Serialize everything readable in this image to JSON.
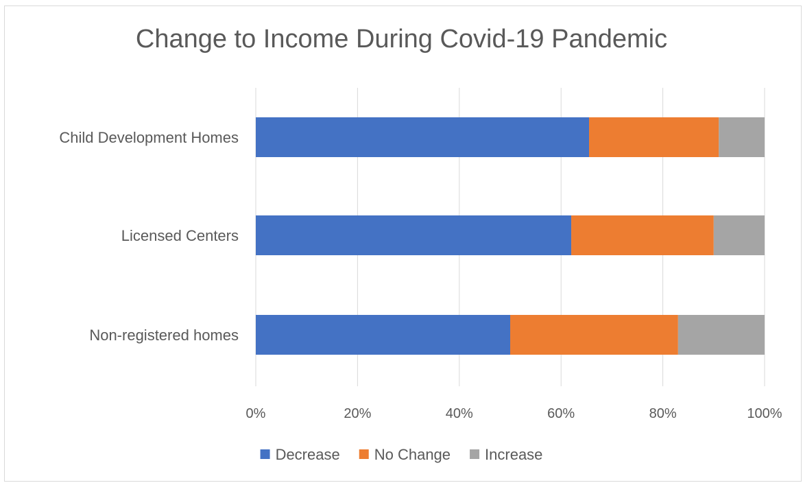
{
  "chart_data": {
    "type": "bar",
    "orientation": "horizontal",
    "stacked": "percent",
    "title": "Change to Income During Covid-19 Pandemic",
    "xlabel": "",
    "ylabel": "",
    "categories": [
      "Child Development Homes",
      "Licensed Centers",
      "Non-registered homes"
    ],
    "series": [
      {
        "name": "Decrease",
        "values": [
          65.5,
          62,
          50
        ],
        "color": "#4472c4"
      },
      {
        "name": "No Change",
        "values": [
          25.5,
          28,
          33
        ],
        "color": "#ed7d31"
      },
      {
        "name": "Increase",
        "values": [
          9,
          10,
          17
        ],
        "color": "#a5a5a5"
      }
    ],
    "xlim": [
      0,
      100
    ],
    "xticks": [
      0,
      20,
      40,
      60,
      80,
      100
    ],
    "xtick_labels": [
      "0%",
      "20%",
      "40%",
      "60%",
      "80%",
      "100%"
    ],
    "grid": true,
    "legend_position": "bottom"
  }
}
